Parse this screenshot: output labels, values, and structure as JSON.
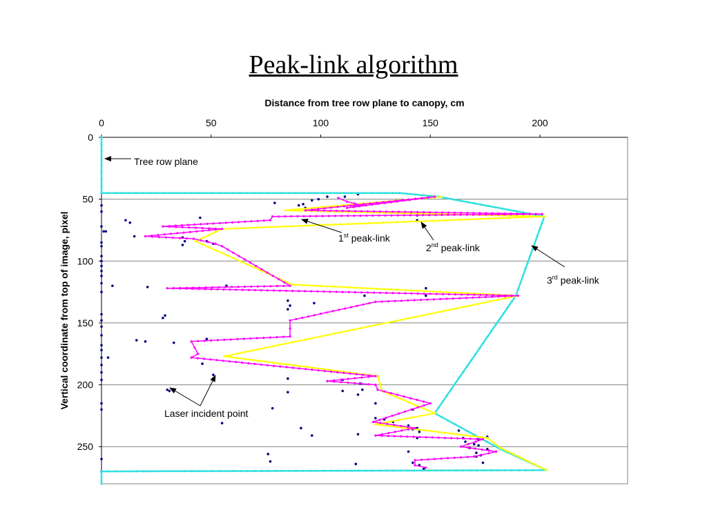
{
  "slide": {
    "title": "Peak-link algorithm"
  },
  "colors": {
    "laser_points": "#000080",
    "first_peak_link": "#ff00ff",
    "second_peak_link": "#ffff00",
    "third_peak_link": "#33e0e0",
    "gridline": "#808080"
  },
  "chart_data": {
    "type": "line",
    "title": "",
    "xlabel": "Distance from tree row plane to canopy, cm",
    "ylabel": "Vertical coordinate from top of image, pixel",
    "x_axis_position": "top",
    "y_axis_inverted": true,
    "xlim": [
      0,
      240
    ],
    "ylim": [
      0,
      280
    ],
    "x_ticks": [
      0,
      50,
      100,
      150,
      200
    ],
    "y_ticks": [
      0,
      50,
      100,
      150,
      200,
      250
    ],
    "grid": "horizontal",
    "series": [
      {
        "key": "laser",
        "kind": "scatter",
        "color": "#000080",
        "points": [
          [
            0,
            55
          ],
          [
            0,
            60
          ],
          [
            0,
            72
          ],
          [
            1,
            76
          ],
          [
            2,
            76
          ],
          [
            0,
            85
          ],
          [
            0,
            88
          ],
          [
            0,
            96
          ],
          [
            0,
            100
          ],
          [
            0,
            104
          ],
          [
            0,
            108
          ],
          [
            0,
            112
          ],
          [
            0,
            118
          ],
          [
            0,
            125
          ],
          [
            0,
            143
          ],
          [
            0,
            148
          ],
          [
            0,
            153
          ],
          [
            0,
            160
          ],
          [
            0,
            168
          ],
          [
            0,
            172
          ],
          [
            0,
            178
          ],
          [
            0,
            184
          ],
          [
            0,
            190
          ],
          [
            0,
            196
          ],
          [
            0,
            215
          ],
          [
            0,
            220
          ],
          [
            0,
            260
          ],
          [
            0,
            270
          ],
          [
            3,
            178
          ],
          [
            5,
            120
          ],
          [
            11,
            67
          ],
          [
            13,
            69
          ],
          [
            15,
            80
          ],
          [
            16,
            164
          ],
          [
            20,
            165
          ],
          [
            21,
            121
          ],
          [
            28,
            146
          ],
          [
            29,
            144
          ],
          [
            30,
            204
          ],
          [
            31,
            205
          ],
          [
            33,
            166
          ],
          [
            37,
            81
          ],
          [
            37,
            87
          ],
          [
            38,
            84
          ],
          [
            45,
            65
          ],
          [
            46,
            183
          ],
          [
            48,
            163
          ],
          [
            48,
            84
          ],
          [
            51,
            192
          ],
          [
            51,
            195
          ],
          [
            51,
            86
          ],
          [
            55,
            231
          ],
          [
            57,
            120
          ],
          [
            76,
            256
          ],
          [
            77,
            262
          ],
          [
            78,
            219
          ],
          [
            79,
            53
          ],
          [
            86,
            136
          ],
          [
            85,
            195
          ],
          [
            85,
            139
          ],
          [
            85,
            132
          ],
          [
            85,
            206
          ],
          [
            90,
            55
          ],
          [
            91,
            235
          ],
          [
            93,
            57
          ],
          [
            92,
            54
          ],
          [
            96,
            51
          ],
          [
            96,
            241
          ],
          [
            97,
            134
          ],
          [
            99,
            50
          ],
          [
            103,
            48
          ],
          [
            110,
            196
          ],
          [
            110,
            205
          ],
          [
            111,
            48
          ],
          [
            116,
            264
          ],
          [
            117,
            240
          ],
          [
            118,
            199
          ],
          [
            120,
            128
          ],
          [
            117,
            208
          ],
          [
            117,
            46
          ],
          [
            119,
            204
          ],
          [
            125,
            215
          ],
          [
            125,
            227
          ],
          [
            126,
            193
          ],
          [
            129,
            228
          ],
          [
            133,
            230
          ],
          [
            140,
            233
          ],
          [
            142,
            236
          ],
          [
            140,
            254
          ],
          [
            142,
            263
          ],
          [
            142,
            220
          ],
          [
            144,
            235
          ],
          [
            145,
            238
          ],
          [
            145,
            265
          ],
          [
            144,
            63
          ],
          [
            144,
            67
          ],
          [
            144,
            243
          ],
          [
            147,
            268
          ],
          [
            148,
            122
          ],
          [
            148,
            128
          ],
          [
            163,
            237
          ],
          [
            165,
            243
          ],
          [
            166,
            246
          ],
          [
            170,
            248
          ],
          [
            168,
            251
          ],
          [
            172,
            249
          ],
          [
            171,
            255
          ],
          [
            173,
            257
          ],
          [
            176,
            252
          ],
          [
            171,
            258
          ],
          [
            174,
            263
          ],
          [
            172,
            244
          ],
          [
            176,
            242
          ]
        ]
      },
      {
        "key": "first",
        "name": "1st peak-link",
        "kind": "line",
        "color": "#ff00ff",
        "points": [
          [
            108,
            49
          ],
          [
            112,
            52
          ],
          [
            119,
            55
          ],
          [
            112,
            57
          ],
          [
            152,
            48
          ],
          [
            93,
            59
          ],
          [
            201,
            62
          ],
          [
            78,
            64
          ],
          [
            77,
            67
          ],
          [
            28,
            72
          ],
          [
            55,
            74
          ],
          [
            20,
            80
          ],
          [
            42,
            82
          ],
          [
            52,
            86
          ],
          [
            55,
            88
          ],
          [
            86,
            120
          ],
          [
            30,
            122
          ],
          [
            190,
            128
          ],
          [
            125,
            133
          ],
          [
            86,
            148
          ],
          [
            86,
            161
          ],
          [
            41,
            165
          ],
          [
            44,
            175
          ],
          [
            41,
            178
          ],
          [
            125,
            193
          ],
          [
            103,
            197
          ],
          [
            125,
            200
          ],
          [
            126,
            204
          ],
          [
            150,
            215
          ],
          [
            124,
            230
          ],
          [
            143,
            235
          ],
          [
            125,
            241
          ],
          [
            174,
            244
          ],
          [
            164,
            250
          ],
          [
            180,
            254
          ],
          [
            170,
            258
          ],
          [
            143,
            261
          ],
          [
            143,
            265
          ],
          [
            148,
            267
          ]
        ]
      },
      {
        "key": "second",
        "name": "2nd peak-link",
        "kind": "line",
        "color": "#ffff00",
        "points": [
          [
            155,
            48
          ],
          [
            84,
            59
          ],
          [
            202,
            64
          ],
          [
            55,
            74
          ],
          [
            43,
            84
          ],
          [
            87,
            119
          ],
          [
            190,
            128
          ],
          [
            56,
            177
          ],
          [
            126,
            193
          ],
          [
            128,
            205
          ],
          [
            152,
            223
          ],
          [
            125,
            232
          ],
          [
            176,
            243
          ],
          [
            182,
            251
          ],
          [
            203,
            269
          ]
        ]
      },
      {
        "key": "third",
        "name": "3rd peak-link",
        "kind": "line",
        "color": "#33e0e0",
        "points": [
          [
            0,
            0
          ],
          [
            0,
            45
          ],
          [
            136,
            45
          ],
          [
            154,
            48
          ],
          [
            202,
            64
          ],
          [
            189,
            128
          ],
          [
            152,
            223
          ],
          [
            182,
            252
          ],
          [
            203,
            269
          ],
          [
            0,
            270
          ],
          [
            0,
            280
          ]
        ]
      }
    ],
    "annotations": [
      {
        "key": "tree_row_plane",
        "text": "Tree row plane"
      },
      {
        "key": "first",
        "base": "1",
        "sup": "st",
        "text": " peak-link"
      },
      {
        "key": "second",
        "base": "2",
        "sup": "nd",
        "text": " peak-link"
      },
      {
        "key": "third",
        "base": "3",
        "sup": "rd",
        "text": " peak-link"
      },
      {
        "key": "laser",
        "text": "Laser incident point"
      }
    ]
  }
}
